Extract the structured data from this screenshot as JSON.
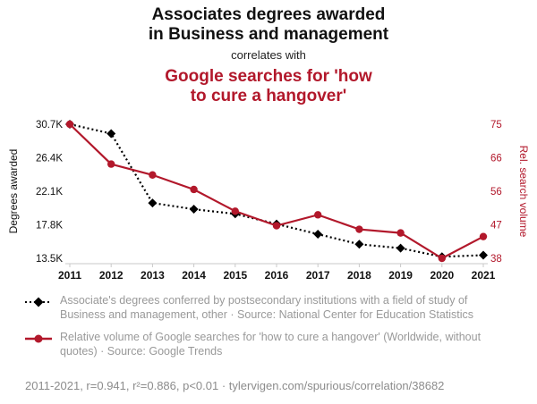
{
  "header": {
    "title_line1": "Associates degrees awarded",
    "title_line2": "in Business and management",
    "connector": "correlates with",
    "red_title_line1": "Google searches for 'how",
    "red_title_line2": "to cure a hangover'",
    "accent_color": "#b2182b"
  },
  "chart_data": {
    "type": "line",
    "x": [
      2011,
      2012,
      2013,
      2014,
      2015,
      2016,
      2017,
      2018,
      2019,
      2020,
      2021
    ],
    "series": [
      {
        "name": "Associate's degrees awarded in Business and management, other",
        "axis": "left",
        "color": "#000000",
        "line_style": "dotted",
        "marker": "diamond",
        "values": [
          30700,
          29500,
          20600,
          19800,
          19200,
          17900,
          16600,
          15300,
          14800,
          13700,
          13900
        ]
      },
      {
        "name": "Google searches for 'how to cure a hangover'",
        "axis": "right",
        "color": "#b2182b",
        "line_style": "solid",
        "marker": "circle",
        "values": [
          75,
          64,
          61,
          57,
          51,
          47,
          50,
          46,
          45,
          38,
          44
        ]
      }
    ],
    "left_axis": {
      "label": "Degrees awarded",
      "ticks": [
        "30.7K",
        "26.4K",
        "22.1K",
        "17.8K",
        "13.5K"
      ],
      "min": 13500,
      "max": 30700
    },
    "right_axis": {
      "label": "Rel. search volume",
      "ticks": [
        "75",
        "66",
        "56",
        "47",
        "38"
      ],
      "min": 38,
      "max": 75
    },
    "grid": false,
    "legend_position": "below"
  },
  "legend": {
    "items": [
      {
        "marker": "black-diamond-dotted-line",
        "text": "Associate's degrees conferred by postsecondary institutions with a field of study of Business and management, other · Source: National Center for Education Statistics"
      },
      {
        "marker": "red-circle-solid-line",
        "text": "Relative volume of Google searches for 'how to cure a hangover' (Worldwide, without quotes) · Source: Google Trends"
      }
    ]
  },
  "footer": {
    "text": "2011-2021, r=0.941, r²=0.886, p<0.01 · tylervigen.com/spurious/correlation/38682"
  }
}
